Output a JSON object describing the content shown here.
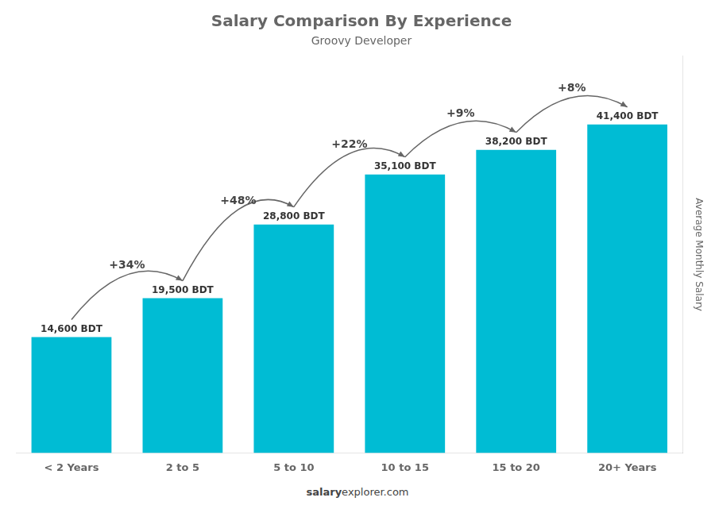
{
  "chart_data": {
    "type": "bar",
    "title": "Salary Comparison By Experience",
    "subtitle": "Groovy Developer",
    "ylabel": "Average Monthly Salary",
    "categories": [
      "< 2 Years",
      "2 to 5",
      "5 to 10",
      "10 to 15",
      "15 to 20",
      "20+ Years"
    ],
    "values": [
      14600,
      19500,
      28800,
      35100,
      38200,
      41400
    ],
    "value_labels": [
      "14,600 BDT",
      "19,500 BDT",
      "28,800 BDT",
      "35,100 BDT",
      "38,200 BDT",
      "41,400 BDT"
    ],
    "data_labels": true,
    "color": "#00bcd4",
    "ylim": [
      0,
      50000
    ],
    "tick_labels": "x",
    "grid": false,
    "annotations": [
      "+34%",
      "+48%",
      "+22%",
      "+9%",
      "+8%"
    ],
    "footer": [
      "salary",
      "explorer.com"
    ]
  }
}
